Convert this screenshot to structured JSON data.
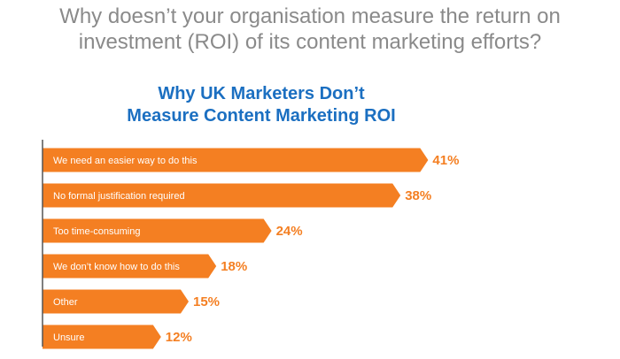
{
  "headline": {
    "line1": "Why doesn’t your organisation measure the return on",
    "line2": "investment (ROI) of its content marketing efforts?"
  },
  "colors": {
    "bar": "#f47f22",
    "value_label": "#f47f22",
    "headline": "#8a8a8a",
    "chart_title": "#1b6fc1",
    "axis": "#555555",
    "category_text": "#ffffff"
  },
  "chart_data": {
    "type": "bar",
    "orientation": "horizontal",
    "title_lines": [
      "Why UK Marketers Don’t",
      "Measure Content Marketing ROI"
    ],
    "categories": [
      "We need an easier way to do this",
      "No formal justification required",
      "Too time-consuming",
      "We don’t know how to do this",
      "Other",
      "Unsure"
    ],
    "values": [
      41,
      38,
      24,
      18,
      15,
      12
    ],
    "value_labels": [
      "41%",
      "38%",
      "24%",
      "18%",
      "15%",
      "12%"
    ],
    "xlim": [
      0,
      50
    ],
    "grid": false,
    "legend": "none"
  }
}
